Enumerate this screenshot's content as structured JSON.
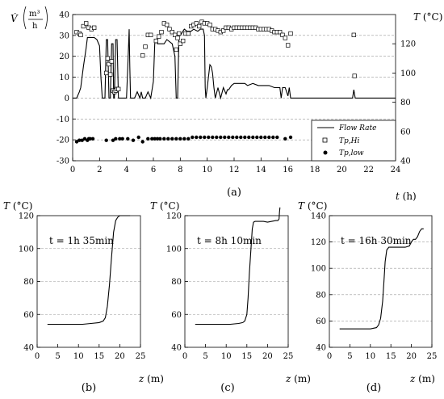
{
  "chart_data": [
    {
      "id": "a",
      "type": "line",
      "caption": "(a)",
      "xlabel": "t (h)",
      "ylabel_left": "V̇ (m³/h)",
      "ylabel_right": "T (°C)",
      "xlim": [
        0,
        24
      ],
      "xticks": [
        "0",
        "2",
        "4",
        "6",
        "8",
        "10",
        "12",
        "14",
        "16",
        "18",
        "20",
        "22",
        "24"
      ],
      "ylim_left": [
        -30,
        40
      ],
      "yticks_left": [
        "-30",
        "-20",
        "-10",
        "0",
        "10",
        "20",
        "30",
        "40"
      ],
      "ylim_right": [
        40,
        140
      ],
      "yticks_right": [
        "40",
        "60",
        "80",
        "100",
        "120"
      ],
      "grid": "horizontal dashed",
      "legend_position": "bottom-right",
      "legend": [
        {
          "label": "Flow Rate",
          "marker": "line"
        },
        {
          "label": "Tp,Hi",
          "marker": "open-square"
        },
        {
          "label": "Tp,low",
          "marker": "filled-circle"
        }
      ],
      "series": [
        {
          "name": "Flow Rate",
          "axis": "left",
          "x": [
            0,
            0.3,
            0.5,
            0.6,
            0.8,
            1.0,
            1.1,
            1.2,
            1.3,
            1.4,
            1.5,
            1.6,
            1.8,
            2.0,
            2.1,
            2.2,
            2.3,
            2.4,
            2.5,
            2.6,
            2.7,
            2.8,
            2.9,
            3.0,
            3.05,
            3.1,
            3.2,
            3.3,
            3.4,
            3.6,
            4.0,
            4.1,
            4.2,
            4.25,
            4.3,
            4.4,
            4.6,
            4.8,
            5.0,
            5.1,
            5.2,
            5.4,
            5.6,
            5.8,
            6.0,
            6.1,
            6.2,
            6.3,
            6.5,
            6.8,
            7.0,
            7.4,
            7.6,
            7.7,
            7.8,
            7.9,
            8.0,
            8.3,
            8.5,
            8.8,
            9.0,
            9.3,
            9.5,
            9.7,
            9.8,
            9.85,
            9.9,
            10.0,
            10.2,
            10.3,
            10.4,
            10.5,
            10.6,
            10.8,
            11.0,
            11.2,
            11.4,
            11.5,
            11.6,
            11.8,
            12.0,
            12.2,
            12.4,
            12.8,
            13.0,
            13.4,
            13.8,
            14.2,
            14.6,
            15.0,
            15.4,
            15.5,
            15.6,
            15.8,
            16.0,
            16.1,
            16.2,
            16.3,
            20.0,
            20.8,
            20.9,
            21.0,
            21.1,
            24.0
          ],
          "y": [
            0,
            0,
            3,
            5,
            15,
            24,
            29,
            29,
            29,
            29,
            29,
            29,
            28,
            25,
            10,
            0,
            0,
            0,
            28,
            28,
            0,
            0,
            26,
            26,
            0,
            0,
            28,
            28,
            0,
            0,
            0,
            15,
            33,
            15,
            0,
            0,
            0,
            3,
            0,
            3,
            0,
            0,
            3,
            0,
            8,
            26,
            28,
            26,
            26,
            26,
            28,
            26,
            20,
            0,
            0,
            30,
            30,
            33,
            32,
            32,
            33,
            32,
            33,
            33,
            30,
            5,
            0,
            5,
            16,
            15,
            12,
            5,
            0,
            5,
            0,
            5,
            2,
            4,
            4,
            6,
            7,
            7,
            7,
            7,
            6,
            7,
            6,
            6,
            6,
            5,
            5,
            0,
            5,
            5,
            1,
            5,
            0,
            0,
            0,
            0,
            4,
            0,
            0,
            0
          ]
        },
        {
          "name": "Tp,Hi",
          "axis": "right",
          "x": [
            0.3,
            0.5,
            0.6,
            0.8,
            1.0,
            1.2,
            1.4,
            1.6,
            2.5,
            2.6,
            2.7,
            2.8,
            2.9,
            3.0,
            3.1,
            3.2,
            3.3,
            3.4,
            5.2,
            5.4,
            5.6,
            5.8,
            6.2,
            6.4,
            6.6,
            6.8,
            7.0,
            7.2,
            7.4,
            7.6,
            7.7,
            7.8,
            7.9,
            8.0,
            8.2,
            8.4,
            8.6,
            8.8,
            9.0,
            9.2,
            9.4,
            9.6,
            9.8,
            10.0,
            10.2,
            10.4,
            10.6,
            10.8,
            11.0,
            11.2,
            11.4,
            11.6,
            11.8,
            12.0,
            12.2,
            12.4,
            12.6,
            12.8,
            13.0,
            13.2,
            13.4,
            13.6,
            13.8,
            14.0,
            14.2,
            14.4,
            14.6,
            14.8,
            15.0,
            15.2,
            15.4,
            15.6,
            15.8,
            16.0,
            16.2,
            20.9,
            20.95
          ],
          "y": [
            128,
            127,
            126,
            132,
            134,
            131,
            130,
            131,
            100,
            110,
            106,
            99,
            108,
            88,
            87,
            88,
            89,
            89,
            112,
            118,
            126,
            126,
            122,
            125,
            128,
            134,
            133,
            130,
            128,
            126,
            116,
            124,
            127,
            120,
            122,
            127,
            127,
            132,
            133,
            134,
            132,
            135,
            134,
            134,
            133,
            130,
            130,
            129,
            128,
            129,
            131,
            131,
            130,
            131,
            131,
            131,
            131,
            131,
            131,
            131,
            131,
            131,
            130,
            130,
            130,
            130,
            130,
            129,
            128,
            128,
            128,
            126,
            124,
            119,
            127,
            126,
            98
          ]
        },
        {
          "name": "Tp,low",
          "axis": "right",
          "x": [
            0.3,
            0.5,
            0.7,
            0.9,
            1.1,
            1.2,
            1.3,
            1.5,
            2.5,
            3.0,
            3.2,
            3.5,
            3.7,
            4.1,
            4.5,
            4.9,
            5.2,
            5.6,
            5.9,
            6.1,
            6.3,
            6.5,
            6.8,
            7.1,
            7.4,
            7.7,
            8.0,
            8.3,
            8.6,
            8.9,
            9.2,
            9.5,
            9.8,
            10.1,
            10.4,
            10.7,
            11.0,
            11.3,
            11.6,
            11.9,
            12.2,
            12.5,
            12.8,
            13.1,
            13.4,
            13.7,
            14.0,
            14.3,
            14.6,
            14.9,
            15.2,
            15.8,
            16.2
          ],
          "y": [
            53,
            54,
            54,
            55,
            54,
            55,
            55,
            55,
            54,
            54,
            55,
            55,
            55,
            55,
            54,
            56,
            53,
            55,
            55,
            55,
            55,
            55,
            55,
            55,
            55,
            55,
            55,
            55,
            55,
            56,
            56,
            56,
            56,
            56,
            56,
            56,
            56,
            56,
            56,
            56,
            56,
            56,
            56,
            56,
            56,
            56,
            56,
            56,
            56,
            56,
            56,
            55,
            56
          ]
        }
      ]
    },
    {
      "id": "b",
      "type": "line",
      "caption": "(b)",
      "annotation": "t = 1h 35min",
      "xlabel": "z (m)",
      "ylabel": "T (°C)",
      "xlim": [
        0,
        25
      ],
      "xticks": [
        "0",
        "5",
        "10",
        "15",
        "20",
        "25"
      ],
      "ylim": [
        40,
        120
      ],
      "yticks": [
        "40",
        "60",
        "80",
        "100",
        "120"
      ],
      "grid": "horizontal dashed",
      "series": [
        {
          "x": [
            2.5,
            5,
            8,
            11,
            13,
            15,
            16,
            16.5,
            17,
            17.5,
            18,
            18.5,
            19,
            19.5,
            20,
            20.5,
            21,
            22.5
          ],
          "y": [
            54,
            54,
            54,
            54,
            54.5,
            55,
            56,
            58,
            65,
            78,
            95,
            110,
            117,
            119,
            120,
            120,
            120,
            120
          ]
        }
      ]
    },
    {
      "id": "c",
      "type": "line",
      "caption": "(c)",
      "annotation": "t = 8h 10min",
      "xlabel": "z (m)",
      "ylabel": "T (°C)",
      "xlim": [
        0,
        25
      ],
      "xticks": [
        "0",
        "5",
        "10",
        "15",
        "20",
        "25"
      ],
      "ylim": [
        40,
        120
      ],
      "yticks": [
        "40",
        "60",
        "80",
        "100",
        "120"
      ],
      "grid": "horizontal dashed",
      "series": [
        {
          "x": [
            2.5,
            5,
            8,
            11,
            13,
            14,
            14.5,
            15,
            15.3,
            15.6,
            16,
            16.3,
            16.6,
            17,
            18,
            19,
            20,
            21,
            22,
            22.5,
            22.8,
            22.9,
            23
          ],
          "y": [
            54,
            54,
            54,
            54,
            54.5,
            55,
            56,
            60,
            70,
            85,
            100,
            112,
            116,
            116.5,
            116.5,
            116.5,
            116,
            116.5,
            117,
            117,
            118,
            122,
            125
          ]
        }
      ]
    },
    {
      "id": "d",
      "type": "line",
      "caption": "(d)",
      "annotation": "t = 16h 30min",
      "xlabel": "z (m)",
      "ylabel": "T (°C)",
      "xlim": [
        0,
        25
      ],
      "xticks": [
        "0",
        "5",
        "10",
        "15",
        "20",
        "25"
      ],
      "ylim": [
        40,
        140
      ],
      "yticks": [
        "40",
        "60",
        "80",
        "100",
        "120",
        "140"
      ],
      "grid": "horizontal dashed",
      "series": [
        {
          "x": [
            2.5,
            5,
            8,
            10,
            11.5,
            12,
            12.5,
            13,
            13.3,
            13.6,
            14,
            14.5,
            15,
            17,
            18.5,
            19.5,
            20,
            20.5,
            21,
            21.5,
            22,
            22.5,
            23
          ],
          "y": [
            54,
            54,
            54,
            54,
            55,
            57,
            62,
            75,
            90,
            105,
            114,
            116,
            116,
            116,
            116,
            117,
            120,
            122,
            122,
            124,
            128,
            130,
            130
          ]
        }
      ]
    }
  ]
}
